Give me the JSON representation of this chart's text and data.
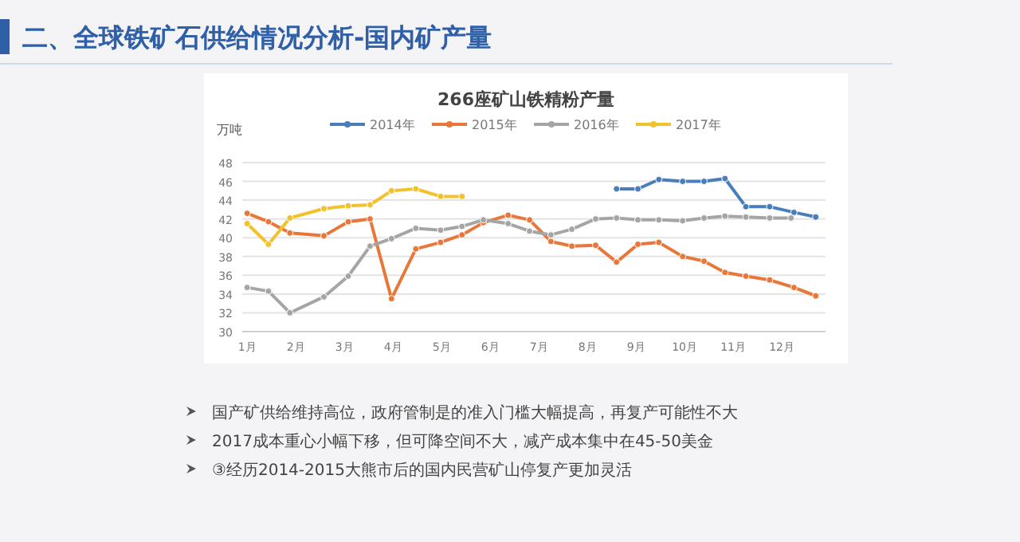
{
  "chart_data": {
    "type": "line",
    "title": "二、全球铁矿石供给情况分析-国内矿产量",
    "subtitle": "266座矿山铁精粉产量",
    "ylabel": "万吨",
    "xlim": [
      0.9,
      12.9
    ],
    "xticks": [
      {
        "value": 1,
        "label": "1月"
      },
      {
        "value": 2,
        "label": "2月"
      },
      {
        "value": 3,
        "label": "3月"
      },
      {
        "value": 4,
        "label": "4月"
      },
      {
        "value": 5,
        "label": "5月"
      },
      {
        "value": 6,
        "label": "6月"
      },
      {
        "value": 7,
        "label": "7月"
      },
      {
        "value": 8,
        "label": "8月"
      },
      {
        "value": 9,
        "label": "9月"
      },
      {
        "value": 10,
        "label": "10月"
      },
      {
        "value": 11,
        "label": "11月"
      },
      {
        "value": 12,
        "label": "12月"
      }
    ],
    "ylim": [
      30,
      48
    ],
    "yticks": [
      30,
      32,
      34,
      36,
      38,
      40,
      42,
      44,
      46,
      48
    ],
    "grid": "y",
    "legend": "top",
    "marker": "circle",
    "line_style": "solid",
    "series": [
      {
        "name": "2014年",
        "color": "#4a7ebb",
        "x": [
          8.6,
          9.04,
          9.47,
          9.96,
          10.4,
          10.83,
          11.26,
          11.75,
          12.25,
          12.7
        ],
        "values": [
          45.2,
          45.2,
          46.2,
          46.0,
          46.0,
          46.3,
          43.3,
          43.3,
          42.7,
          42.2
        ]
      },
      {
        "name": "2015年",
        "color": "#e8773a",
        "x": [
          1,
          1.44,
          1.88,
          2.58,
          3.08,
          3.53,
          3.97,
          4.47,
          4.98,
          5.42,
          5.86,
          6.37,
          6.81,
          7.25,
          7.68,
          8.17,
          8.6,
          9.04,
          9.47,
          9.96,
          10.4,
          10.83,
          11.26,
          11.75,
          12.25,
          12.7
        ],
        "values": [
          42.6,
          41.7,
          40.5,
          40.2,
          41.7,
          42.0,
          33.5,
          38.8,
          39.5,
          40.3,
          41.6,
          42.4,
          41.9,
          39.6,
          39.1,
          39.2,
          37.4,
          39.3,
          39.5,
          38.0,
          37.5,
          36.3,
          35.9,
          35.5,
          34.7,
          33.8
        ]
      },
      {
        "name": "2016年",
        "color": "#a5a5a5",
        "x": [
          1,
          1.44,
          1.88,
          2.58,
          3.08,
          3.53,
          3.97,
          4.47,
          4.98,
          5.42,
          5.86,
          6.37,
          6.81,
          7.25,
          7.68,
          8.17,
          8.6,
          9.04,
          9.47,
          9.96,
          10.4,
          10.83,
          11.26,
          11.75,
          12.19
        ],
        "values": [
          34.7,
          34.3,
          32.0,
          33.7,
          35.9,
          39.1,
          39.9,
          41.0,
          40.8,
          41.2,
          41.9,
          41.5,
          40.7,
          40.3,
          40.9,
          42.0,
          42.1,
          41.9,
          41.9,
          41.8,
          42.1,
          42.3,
          42.2,
          42.1,
          42.1
        ]
      },
      {
        "name": "2017年",
        "color": "#f2c12e",
        "x": [
          1,
          1.44,
          1.88,
          2.58,
          3.08,
          3.53,
          3.97,
          4.47,
          4.98,
          5.42
        ],
        "values": [
          41.5,
          39.3,
          42.1,
          43.1,
          43.4,
          43.5,
          45.0,
          45.2,
          44.4,
          44.4
        ]
      }
    ],
    "annotations": [
      "国产矿供给维持高位，政府管制是的准入门槛大幅提高，再复产可能性不大",
      "2017成本重心小幅下移，但可降空间不大，减产成本集中在45-50美金",
      "③经历2014-2015大熊市后的国内民营矿山停复产更加灵活"
    ]
  }
}
